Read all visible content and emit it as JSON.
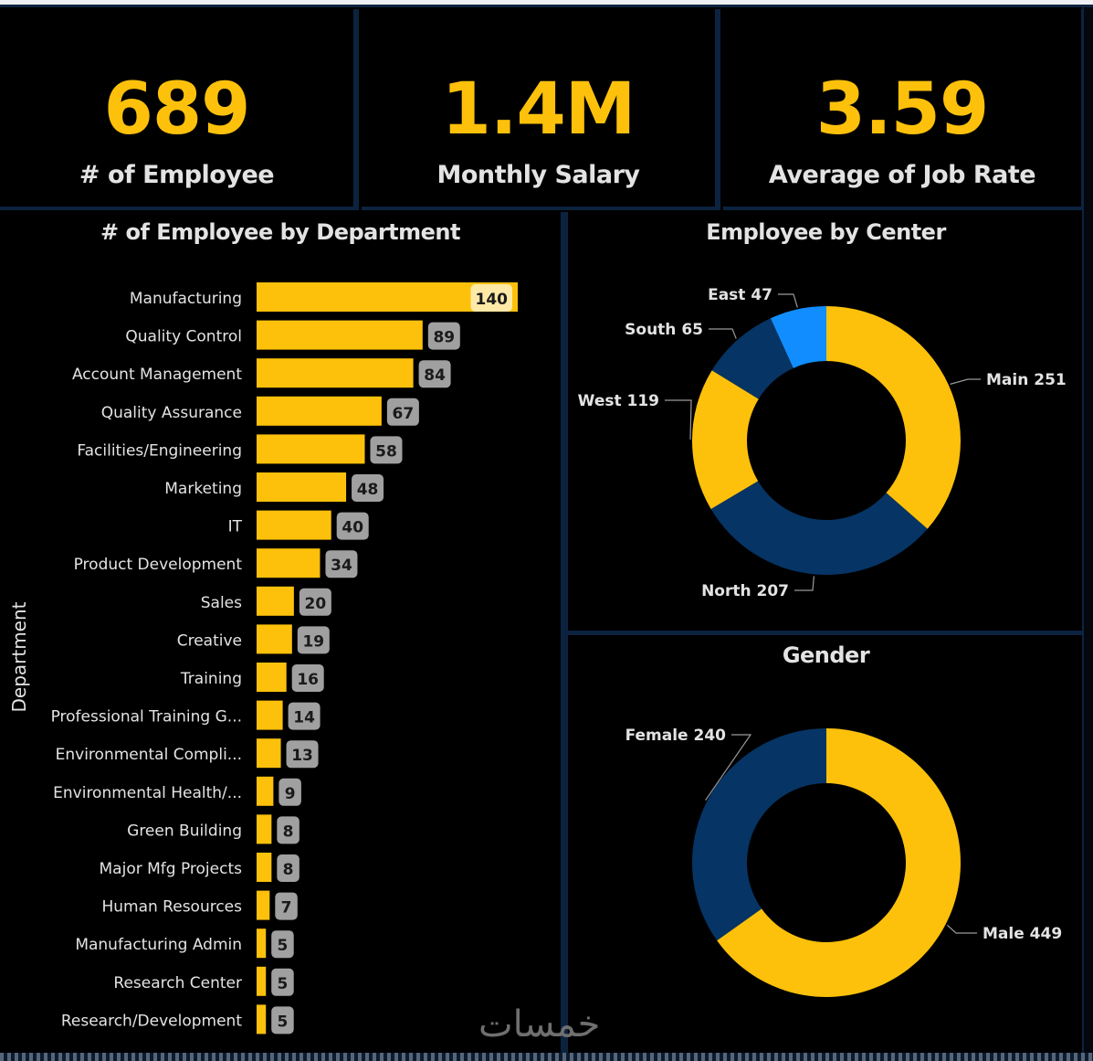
{
  "theme": {
    "accent": "#FDC10B",
    "navy": "#063464",
    "bright_blue": "#118DFF",
    "label_bg": "#A0A0A0",
    "top_label_bg": "#FFE9A6",
    "background": "#000000",
    "divider": "#0C2340"
  },
  "kpis": [
    {
      "value": "689",
      "label": "# of Employee"
    },
    {
      "value": "1.4M",
      "label": "Monthly Salary"
    },
    {
      "value": "3.59",
      "label": "Average of Job Rate"
    }
  ],
  "watermark": "خمسات",
  "chart_data": [
    {
      "type": "bar",
      "orientation": "horizontal",
      "title": "# of Employee by Department",
      "xlabel": "",
      "ylabel": "Department",
      "xlim": [
        0,
        140
      ],
      "grid": false,
      "categories": [
        "Manufacturing",
        "Quality Control",
        "Account Management",
        "Quality Assurance",
        "Facilities/Engineering",
        "Marketing",
        "IT",
        "Product Development",
        "Sales",
        "Creative",
        "Training",
        "Professional Training G...",
        "Environmental Compli...",
        "Environmental Health/...",
        "Green Building",
        "Major Mfg Projects",
        "Human Resources",
        "Manufacturing Admin",
        "Research Center",
        "Research/Development"
      ],
      "values": [
        140,
        89,
        84,
        67,
        58,
        48,
        40,
        34,
        20,
        19,
        16,
        14,
        13,
        9,
        8,
        8,
        7,
        5,
        5,
        5
      ],
      "data_labels": [
        "140",
        "89",
        "84",
        "67",
        "58",
        "48",
        "40",
        "34",
        "20",
        "19",
        "16",
        "14",
        "13",
        "9",
        "8",
        "8",
        "7",
        "5",
        "5",
        "5"
      ]
    },
    {
      "type": "pie",
      "variant": "donut",
      "title": "Employee by Center",
      "slices": [
        {
          "label": "Main",
          "value": 251,
          "display": "Main 251",
          "color": "#FDC10B"
        },
        {
          "label": "North",
          "value": 207,
          "display": "North 207",
          "color": "#063464"
        },
        {
          "label": "West",
          "value": 119,
          "display": "West 119",
          "color": "#FDC10B"
        },
        {
          "label": "South",
          "value": 65,
          "display": "South 65",
          "color": "#063464"
        },
        {
          "label": "East",
          "value": 47,
          "display": "East 47",
          "color": "#118DFF"
        }
      ],
      "legend": "none"
    },
    {
      "type": "pie",
      "variant": "donut",
      "title": "Gender",
      "slices": [
        {
          "label": "Male",
          "value": 449,
          "display": "Male 449",
          "color": "#FDC10B"
        },
        {
          "label": "Female",
          "value": 240,
          "display": "Female 240",
          "color": "#063464"
        }
      ],
      "legend": "none"
    }
  ]
}
